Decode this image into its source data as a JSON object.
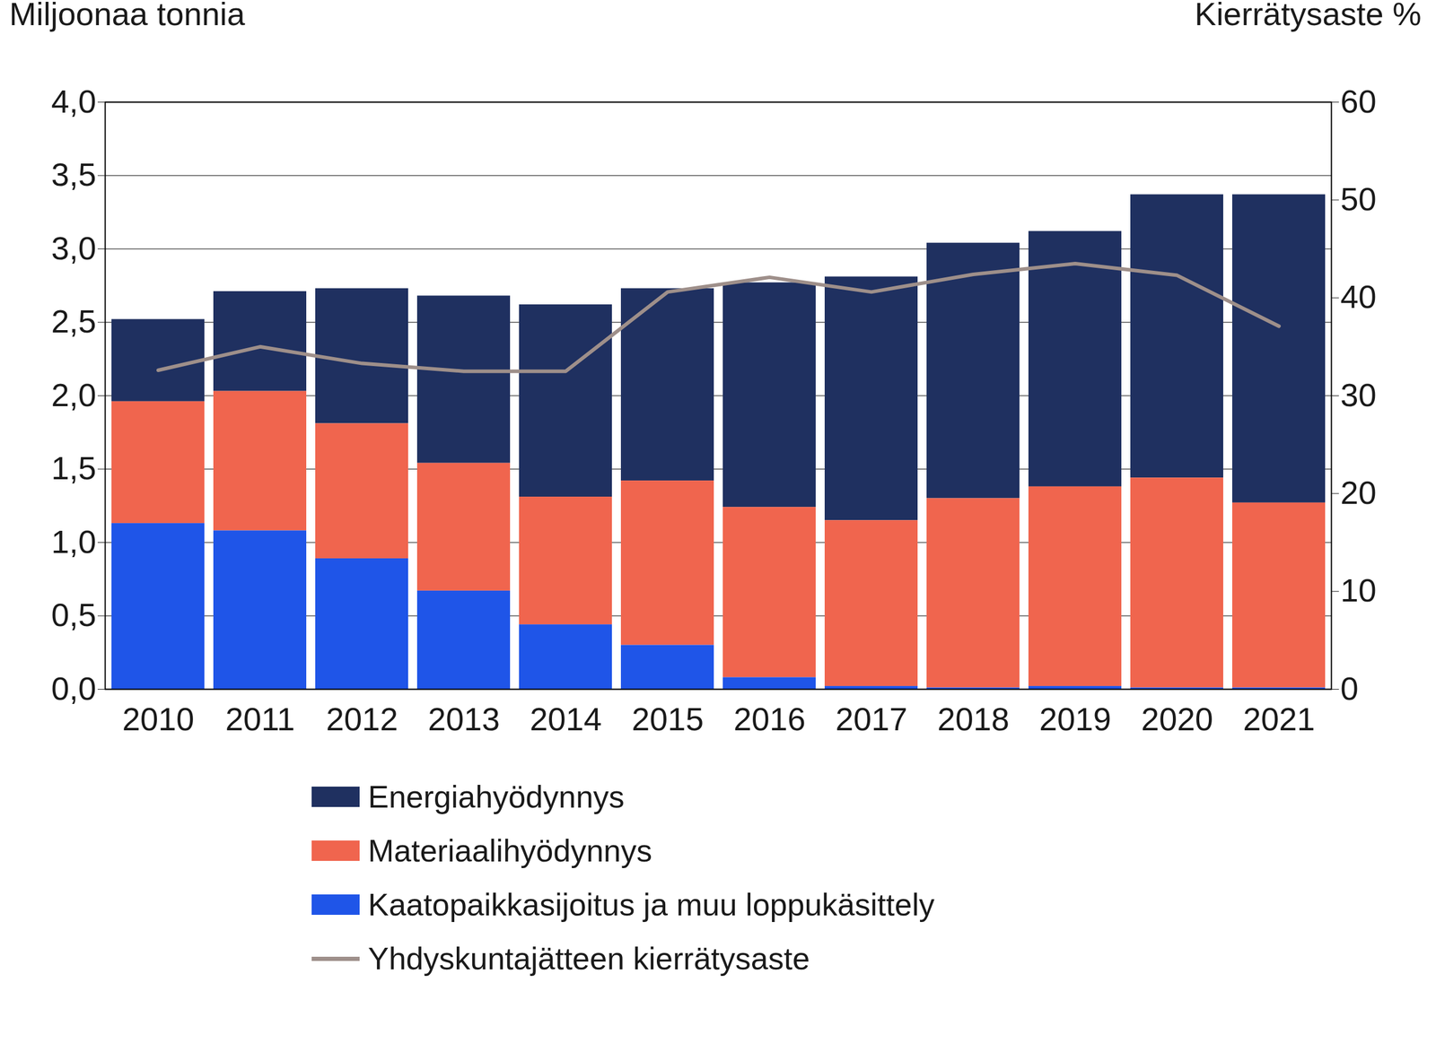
{
  "chart_data": {
    "type": "bar",
    "stacked": true,
    "grid": true,
    "legend": "bottom",
    "y_label": "Miljoonaa tonnia",
    "y2_label": "Kierrätysaste %",
    "categories": [
      "2010",
      "2011",
      "2012",
      "2013",
      "2014",
      "2015",
      "2016",
      "2017",
      "2018",
      "2019",
      "2020",
      "2021"
    ],
    "series": [
      {
        "name": "Energiahyödynnys",
        "color": "#1f3060",
        "values": [
          0.56,
          0.68,
          0.92,
          1.14,
          1.31,
          1.31,
          1.53,
          1.66,
          1.74,
          1.74,
          1.93,
          2.1
        ]
      },
      {
        "name": "Materiaalihyödynnys",
        "color": "#f0654e",
        "values": [
          0.83,
          0.95,
          0.92,
          0.87,
          0.87,
          1.12,
          1.16,
          1.13,
          1.29,
          1.36,
          1.43,
          1.26
        ]
      },
      {
        "name": "Kaatopaikkasijoitus ja muu loppukäsittely",
        "color": "#1f55e8",
        "values": [
          1.13,
          1.08,
          0.89,
          0.67,
          0.44,
          0.3,
          0.08,
          0.02,
          0.01,
          0.02,
          0.01,
          0.01
        ]
      },
      {
        "name": "Yhdyskuntajätteen kierrätysaste",
        "color": "#9e8f8a",
        "type": "line",
        "axis": "y2",
        "values": [
          32.6,
          35.0,
          33.3,
          32.5,
          32.5,
          40.6,
          42.1,
          40.6,
          42.4,
          43.5,
          42.3,
          37.1
        ]
      }
    ],
    "ylim": [
      0,
      4
    ],
    "yticks": [
      {
        "value": 0,
        "label": "0,0"
      },
      {
        "value": 0.5,
        "label": "0,5"
      },
      {
        "value": 1,
        "label": "1,0"
      },
      {
        "value": 1.5,
        "label": "1,5"
      },
      {
        "value": 2,
        "label": "2,0"
      },
      {
        "value": 2.5,
        "label": "2,5"
      },
      {
        "value": 3,
        "label": "3,0"
      },
      {
        "value": 3.5,
        "label": "3,5"
      },
      {
        "value": 4,
        "label": "4,0"
      }
    ],
    "y2lim": [
      0,
      60
    ],
    "y2ticks": [
      0,
      10,
      20,
      30,
      40,
      50,
      60
    ]
  }
}
